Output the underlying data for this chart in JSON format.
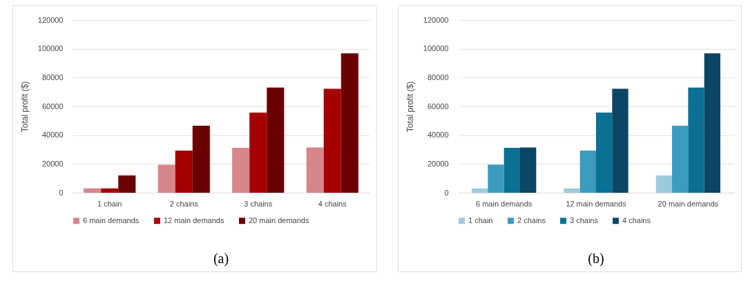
{
  "chart_data": [
    {
      "type": "bar",
      "categories": [
        "1 chain",
        "2 chains",
        "3 chains",
        "4 chains"
      ],
      "ylabel": "Total profit ($)",
      "ylim": [
        0,
        120000
      ],
      "yticks": [
        0,
        20000,
        40000,
        60000,
        80000,
        100000,
        120000
      ],
      "grid": "y",
      "legend": "bottom",
      "annotations": [
        "(a)"
      ],
      "series": [
        {
          "name": "6 main demands",
          "color": "#d6868a",
          "values": [
            3000,
            19500,
            31200,
            31500
          ]
        },
        {
          "name": "12 main demands",
          "color": "#a50000",
          "values": [
            3000,
            29300,
            55700,
            72200
          ]
        },
        {
          "name": "20 main demands",
          "color": "#6b0000",
          "values": [
            12000,
            46600,
            73100,
            96800
          ]
        }
      ]
    },
    {
      "type": "bar",
      "categories": [
        "6 main demands",
        "12 main demands",
        "20 main demands"
      ],
      "ylabel": "Total profit ($)",
      "ylim": [
        0,
        120000
      ],
      "yticks": [
        0,
        20000,
        40000,
        60000,
        80000,
        100000,
        120000
      ],
      "grid": "y",
      "legend": "bottom",
      "annotations": [
        "(b)"
      ],
      "series": [
        {
          "name": "1 chain",
          "color": "#9ccbdb",
          "values": [
            3000,
            3000,
            12000
          ]
        },
        {
          "name": "2 chains",
          "color": "#3b9cc0",
          "values": [
            19500,
            29300,
            46600
          ]
        },
        {
          "name": "3 chains",
          "color": "#0a7194",
          "values": [
            31200,
            55700,
            73100
          ]
        },
        {
          "name": "4 chains",
          "color": "#0b4664",
          "values": [
            31500,
            72200,
            96800
          ]
        }
      ]
    }
  ]
}
